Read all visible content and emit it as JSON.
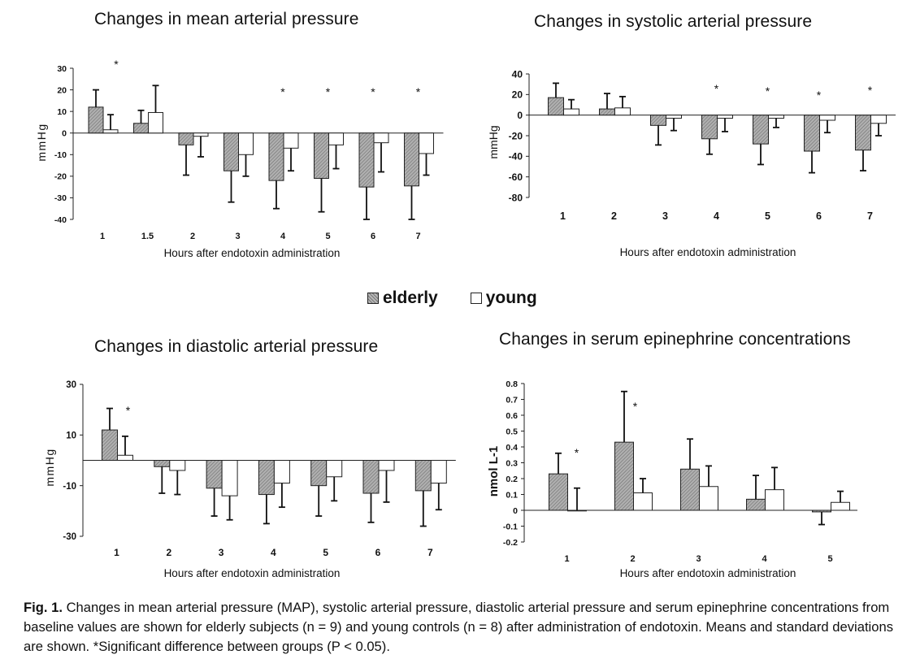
{
  "legend": {
    "elderly": "elderly",
    "young": "young"
  },
  "caption": {
    "label": "Fig. 1.",
    "text": "Changes in mean arterial pressure (MAP), systolic arterial pressure, diastolic arterial pressure and serum epinephrine concentrations from baseline values are shown for elderly subjects (n = 9) and young controls (n = 8) after administration of endotoxin. Means and standard deviations are shown. *Significant difference between groups (P < 0.05)."
  },
  "chart_data": [
    {
      "id": "map",
      "type": "bar",
      "title": "Changes in mean arterial pressure",
      "xlabel": "Hours after endotoxin administration",
      "ylabel": "mmHg",
      "ylim": [
        -40,
        30
      ],
      "yticks": [
        30,
        20,
        10,
        0,
        -10,
        -20,
        -30,
        -40
      ],
      "ytick_labels": [
        "30",
        "20",
        "10",
        "0",
        "-10",
        "-20",
        "-30",
        "-40"
      ],
      "categories": [
        "1",
        "1.5",
        "2",
        "3",
        "4",
        "5",
        "6",
        "7"
      ],
      "series": [
        {
          "name": "elderly",
          "values": [
            12,
            4.5,
            -5.5,
            -17.5,
            -22,
            -21,
            -25,
            -24.5
          ],
          "sd": [
            8,
            6,
            14,
            14.5,
            13,
            15.5,
            15,
            15.5
          ]
        },
        {
          "name": "young",
          "values": [
            1.5,
            9.5,
            -1.5,
            -10,
            -7,
            -5.5,
            -4.5,
            -9.5
          ],
          "sd": [
            7,
            12.5,
            9.5,
            10,
            10.5,
            11,
            13.5,
            10
          ]
        }
      ],
      "significant": [
        true,
        false,
        false,
        false,
        true,
        true,
        true,
        true
      ],
      "significance_marker": "*"
    },
    {
      "id": "sap",
      "type": "bar",
      "title": "Changes in systolic arterial pressure",
      "xlabel": "Hours after endotoxin administration",
      "ylabel": "mmHg",
      "ylim": [
        -80,
        40
      ],
      "yticks": [
        40,
        20,
        0,
        -20,
        -40,
        -60,
        -80
      ],
      "ytick_labels": [
        "40",
        "20",
        "0",
        "-20",
        "-40",
        "-60",
        "-80"
      ],
      "categories": [
        "1",
        "2",
        "3",
        "4",
        "5",
        "6",
        "7"
      ],
      "series": [
        {
          "name": "elderly",
          "values": [
            17,
            6,
            -10,
            -23,
            -28,
            -35,
            -34
          ],
          "sd": [
            14,
            15,
            19,
            15,
            20,
            21,
            20
          ]
        },
        {
          "name": "young",
          "values": [
            6,
            7,
            -3,
            -3,
            -3,
            -5,
            -8
          ],
          "sd": [
            9,
            11,
            12,
            13,
            9,
            12,
            12
          ]
        }
      ],
      "significant": [
        false,
        false,
        false,
        true,
        true,
        true,
        true
      ],
      "significance_marker": "*"
    },
    {
      "id": "dap",
      "type": "bar",
      "title": "Changes in diastolic arterial pressure",
      "xlabel": "Hours after endotoxin administration",
      "ylabel": "mmHg",
      "ylim": [
        -30,
        30
      ],
      "yticks": [
        30,
        10,
        -10,
        -30
      ],
      "ytick_labels": [
        "30",
        "10",
        "-10",
        "-30"
      ],
      "categories": [
        "1",
        "2",
        "3",
        "4",
        "5",
        "6",
        "7"
      ],
      "series": [
        {
          "name": "elderly",
          "values": [
            12,
            -2.5,
            -11,
            -13.5,
            -10,
            -13,
            -12
          ],
          "sd": [
            8.5,
            10.5,
            11,
            11.5,
            12,
            11.5,
            14
          ]
        },
        {
          "name": "young",
          "values": [
            2,
            -4,
            -14,
            -9,
            -6.5,
            -4,
            -9
          ],
          "sd": [
            7.5,
            9.5,
            9.5,
            9.5,
            9.5,
            12.5,
            10.5
          ]
        }
      ],
      "significant": [
        true,
        false,
        false,
        false,
        false,
        false,
        false
      ],
      "significance_marker": "*"
    },
    {
      "id": "epi",
      "type": "bar",
      "title": "Changes in serum epinephrine concentrations",
      "xlabel": "Hours after endotoxin administration",
      "ylabel": "nmol L-1",
      "ylim": [
        -0.2,
        0.8
      ],
      "yticks": [
        0.8,
        0.7,
        0.6,
        0.5,
        0.4,
        0.3,
        0.2,
        0.1,
        0,
        -0.1,
        -0.2
      ],
      "ytick_labels": [
        "0.8",
        "0.7",
        "0.6",
        "0.5",
        "0.4",
        "0.3",
        "0.2",
        "0.1",
        "0",
        "-0.1",
        "-0.2"
      ],
      "categories": [
        "1",
        "2",
        "3",
        "4",
        "5"
      ],
      "series": [
        {
          "name": "elderly",
          "values": [
            0.23,
            0.43,
            0.26,
            0.07,
            -0.01
          ],
          "sd": [
            0.13,
            0.32,
            0.19,
            0.15,
            0.08
          ]
        },
        {
          "name": "young",
          "values": [
            0.0,
            0.11,
            0.15,
            0.13,
            0.05
          ],
          "sd": [
            0.14,
            0.09,
            0.13,
            0.14,
            0.07
          ]
        }
      ],
      "significant": [
        true,
        true,
        false,
        false,
        false
      ],
      "significance_marker": "*"
    }
  ]
}
